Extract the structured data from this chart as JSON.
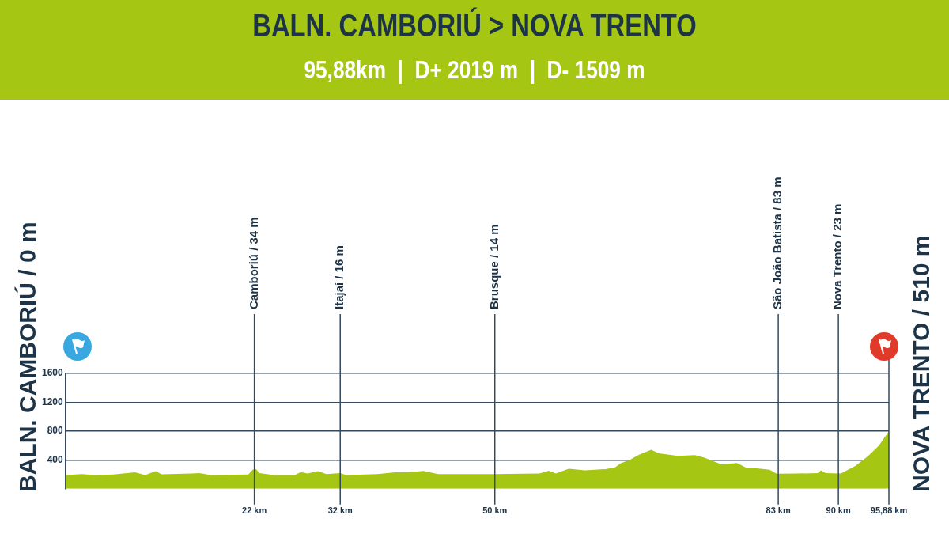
{
  "chart_data": {
    "type": "area",
    "title": "BALN. CAMBORIÚ > NOVA TRENTO",
    "subtitle": "95,88km  |  D+ 2019 m  |  D- 1509 m",
    "annotations": [
      "BALN. CAMBORIÚ / 0 m",
      "NOVA TRENTO / 510 m"
    ],
    "x": [
      0,
      1.9,
      3.5,
      5.6,
      8.1,
      9.3,
      10.5,
      11.2,
      14.7,
      15.6,
      16.9,
      21.3,
      21.8,
      22.2,
      22.6,
      24.3,
      26.7,
      27.4,
      28.2,
      29.4,
      30.4,
      32,
      32.7,
      36.3,
      38.4,
      40,
      41.7,
      43.4,
      46.7,
      49.8,
      55.2,
      56.3,
      57.1,
      58.6,
      60.5,
      62.9,
      64,
      64.7,
      65.6,
      66.7,
      68.2,
      69.1,
      71.3,
      73.3,
      74.4,
      75.2,
      76.4,
      78.2,
      79.4,
      80.5,
      82,
      82.8,
      85.1,
      87.6,
      88,
      88.5,
      90.3,
      92,
      93.4,
      94.7,
      95.88
    ],
    "values": [
      190,
      203,
      190,
      197,
      227,
      190,
      245,
      201,
      211,
      217,
      190,
      197,
      264,
      271,
      217,
      190,
      190,
      231,
      211,
      245,
      204,
      217,
      190,
      204,
      227,
      231,
      248,
      204,
      204,
      204,
      211,
      249,
      211,
      279,
      255,
      272,
      298,
      356,
      394,
      467,
      541,
      493,
      456,
      467,
      431,
      394,
      338,
      356,
      282,
      282,
      265,
      208,
      211,
      217,
      255,
      217,
      211,
      319,
      449,
      597,
      800
    ],
    "color": "#a6c614",
    "xlim": [
      0,
      95.88
    ],
    "xticks": [
      {
        "value": 22,
        "label": "22 km"
      },
      {
        "value": 32,
        "label": "32 km"
      },
      {
        "value": 50,
        "label": "50 km"
      },
      {
        "value": 83,
        "label": "83 km"
      },
      {
        "value": 90,
        "label": "90 km"
      },
      {
        "value": 95.88,
        "label": "95,88 km"
      }
    ],
    "ylim": [
      0,
      1600
    ],
    "yticks": [
      400,
      800,
      1200,
      1600
    ],
    "grid": "y",
    "legend": false,
    "ref_lines": [
      {
        "axis": "x",
        "value": 22,
        "label": "Camboriú / 34 m"
      },
      {
        "axis": "x",
        "value": 32,
        "label": "Itajaí / 16 m"
      },
      {
        "axis": "x",
        "value": 50,
        "label": "Brusque / 14 m"
      },
      {
        "axis": "x",
        "value": 83,
        "label": "São João Batista / 83 m"
      },
      {
        "axis": "x",
        "value": 90,
        "label": "Nova Trento / 23 m"
      }
    ]
  }
}
